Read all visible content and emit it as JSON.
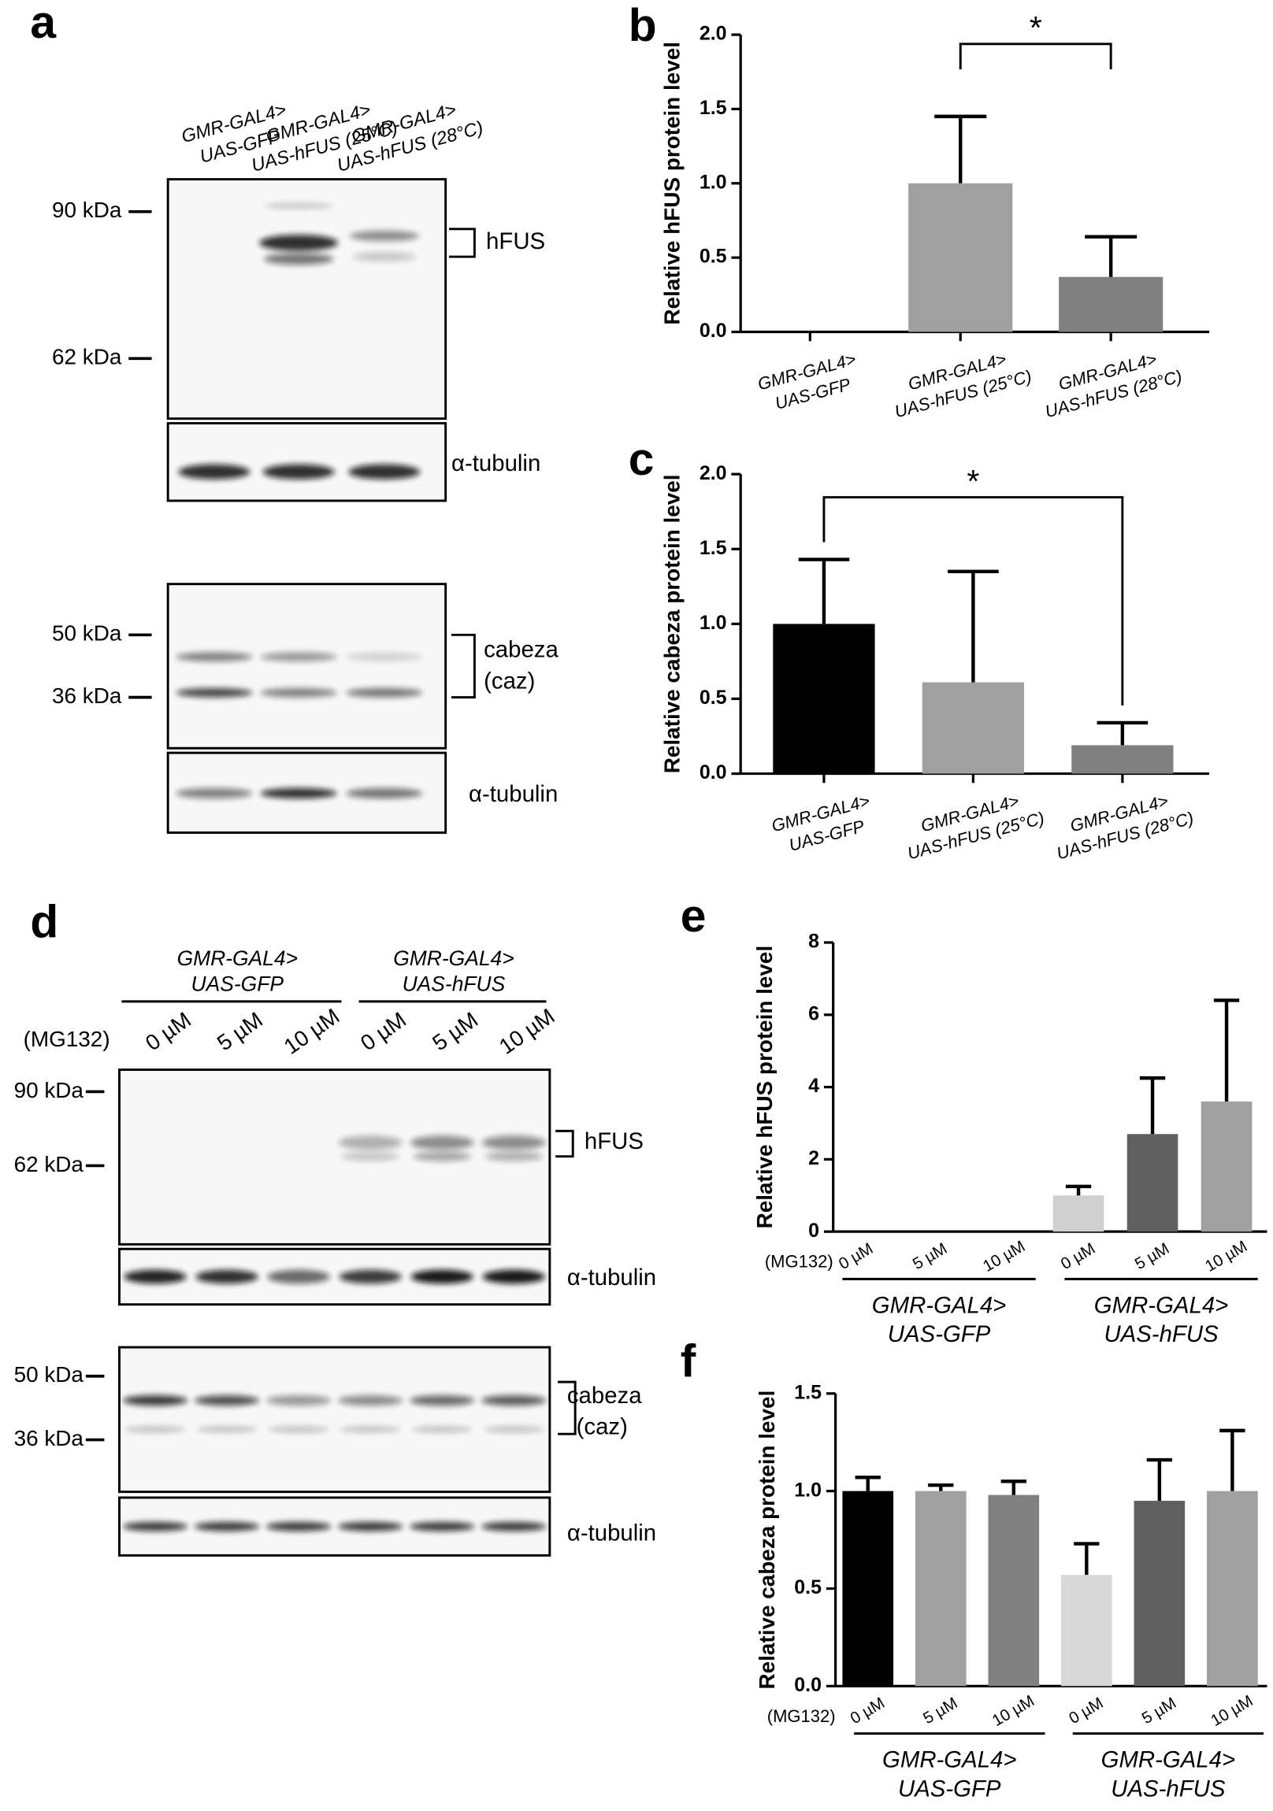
{
  "figure": {
    "panel_labels": [
      "a",
      "b",
      "c",
      "d",
      "e",
      "f"
    ],
    "blot_a": {
      "lanes": [
        [
          "GMR-GAL4>",
          "UAS-GFP"
        ],
        [
          "GMR-GAL4>",
          "UAS-hFUS (25°C)"
        ],
        [
          "GMR-GAL4>",
          "UAS-hFUS (28°C)"
        ]
      ],
      "hfus_markers": [
        "90 kDa",
        "62 kDa"
      ],
      "hfus": "hFUS",
      "tubulin_1": "α-tubulin",
      "caz_markers": [
        "50 kDa",
        "36 kDa"
      ],
      "caz": [
        "cabeza",
        "(caz)"
      ],
      "tubulin_2": "α-tubulin"
    },
    "blot_d": {
      "groups": [
        [
          "GMR-GAL4>",
          "UAS-GFP"
        ],
        [
          "GMR-GAL4>",
          "UAS-hFUS"
        ]
      ],
      "treatment": "(MG132)",
      "doses": [
        "0 µM",
        "5 µM",
        "10 µM",
        "0 µM",
        "5 µM",
        "10 µM"
      ],
      "hfus_markers": [
        "90 kDa",
        "62 kDa"
      ],
      "hfus": "hFUS",
      "tubulin_1": "α-tubulin",
      "caz_markers": [
        "50 kDa",
        "36 kDa"
      ],
      "caz": [
        "cabeza",
        "(caz)"
      ],
      "tubulin_2": "α-tubulin"
    }
  },
  "chart_data": [
    {
      "type": "bar",
      "ylabel": "Relative hFUS protein level",
      "categories": [
        [
          "GMR-GAL4>",
          "UAS-GFP"
        ],
        [
          "GMR-GAL4>",
          "UAS-hFUS (25°C)"
        ],
        [
          "GMR-GAL4>",
          "UAS-hFUS (28°C)"
        ]
      ],
      "values": [
        0,
        1.0,
        0.37
      ],
      "errors": [
        null,
        0.45,
        0.27
      ],
      "colors": [
        "#000000",
        "#a0a0a0",
        "#808080"
      ],
      "ylim": [
        0,
        2
      ],
      "yticks": [
        {
          "value": 0,
          "label": "0.0"
        },
        0.5,
        {
          "value": 1,
          "label": "1.0"
        },
        1.5,
        {
          "value": 2,
          "label": "2.0"
        }
      ],
      "significance": {
        "label": "*",
        "between": [
          1,
          2
        ]
      }
    },
    {
      "type": "bar",
      "ylabel": "Relative cabeza protein level",
      "categories": [
        [
          "GMR-GAL4>",
          "UAS-GFP"
        ],
        [
          "GMR-GAL4>",
          "UAS-hFUS (25°C)"
        ],
        [
          "GMR-GAL4>",
          "UAS-hFUS (28°C)"
        ]
      ],
      "values": [
        1.0,
        0.61,
        0.19
      ],
      "errors": [
        0.43,
        0.74,
        0.15
      ],
      "colors": [
        "#000000",
        "#a0a0a0",
        "#808080"
      ],
      "ylim": [
        0,
        2
      ],
      "yticks": [
        {
          "value": 0,
          "label": "0.0"
        },
        0.5,
        {
          "value": 1,
          "label": "1.0"
        },
        1.5,
        {
          "value": 2,
          "label": "2.0"
        }
      ],
      "significance": {
        "label": "*",
        "between": [
          0,
          2
        ]
      }
    },
    {
      "type": "bar",
      "ylabel": "Relative hFUS protein level",
      "x_prefix": "(MG132)",
      "categories": [
        "0 µM",
        "5 µM",
        "10 µM",
        "0 µM",
        "5 µM",
        "10 µM"
      ],
      "groups": [
        [
          "GMR-GAL4>",
          "UAS-GFP"
        ],
        [
          "GMR-GAL4>",
          "UAS-hFUS"
        ]
      ],
      "values": [
        0,
        0,
        0,
        1.0,
        2.7,
        3.6
      ],
      "errors": [
        null,
        null,
        null,
        0.25,
        1.55,
        2.8
      ],
      "colors": [
        "#000000",
        "#a0a0a0",
        "#808080",
        "#d0d0d0",
        "#606060",
        "#a0a0a0"
      ],
      "ylim": [
        0,
        8
      ],
      "yticks": [
        0,
        2,
        4,
        6,
        8
      ]
    },
    {
      "type": "bar",
      "ylabel": "Relative cabeza protein level",
      "x_prefix": "(MG132)",
      "categories": [
        "0 µM",
        "5 µM",
        "10 µM",
        "0 µM",
        "5 µM",
        "10 µM"
      ],
      "groups": [
        [
          "GMR-GAL4>",
          "UAS-GFP"
        ],
        [
          "GMR-GAL4>",
          "UAS-hFUS"
        ]
      ],
      "values": [
        1.0,
        1.0,
        0.98,
        0.57,
        0.95,
        1.0
      ],
      "errors": [
        0.07,
        0.03,
        0.07,
        0.16,
        0.21,
        0.31
      ],
      "colors": [
        "#000000",
        "#a0a0a0",
        "#808080",
        "#d8d8d8",
        "#606060",
        "#a0a0a0"
      ],
      "ylim": [
        0,
        1.5
      ],
      "yticks": [
        {
          "value": 0,
          "label": "0.0"
        },
        0.5,
        {
          "value": 1,
          "label": "1.0"
        },
        1.5
      ]
    }
  ]
}
